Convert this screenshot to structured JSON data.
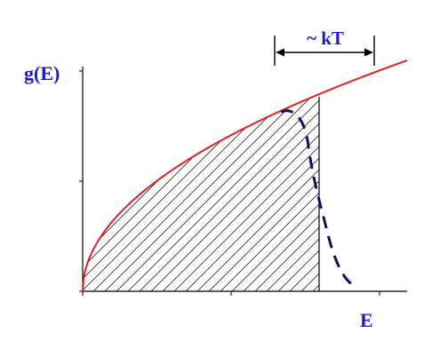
{
  "y_axis_label": "g(E)",
  "x_axis_label": "E",
  "width_annotation": "~ kT",
  "colors": {
    "label": "#1a1ad6",
    "density_curve": "#e02020",
    "occupied_curve": "#101060",
    "axis": "#000000",
    "hatch": "#000000"
  }
}
